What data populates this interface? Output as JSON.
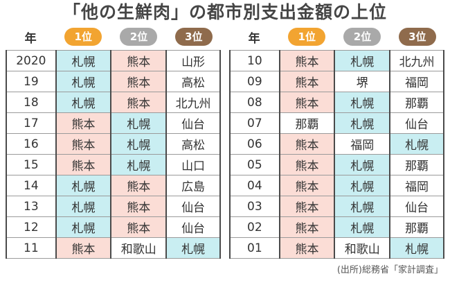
{
  "title": "「他の生鮮肉」の都市別支出金額の上位",
  "source": "(出所)総務省「家計調査」",
  "header": {
    "year_label": "年",
    "ranks": [
      {
        "label": "1位",
        "color": "#F2A431"
      },
      {
        "label": "2位",
        "color": "#A9A9A9"
      },
      {
        "label": "3位",
        "color": "#8F6B4C"
      }
    ]
  },
  "city_highlights": {
    "札幌": "#C9EEF2",
    "熊本": "#FBDDD6"
  },
  "chart_data": {
    "type": "table",
    "title": "「他の生鮮肉」の都市別支出金額の上位",
    "columns": [
      "年",
      "1位",
      "2位",
      "3位"
    ],
    "tables": [
      {
        "rows": [
          [
            "2020",
            "札幌",
            "熊本",
            "山形"
          ],
          [
            "19",
            "札幌",
            "熊本",
            "高松"
          ],
          [
            "18",
            "札幌",
            "熊本",
            "北九州"
          ],
          [
            "17",
            "熊本",
            "札幌",
            "仙台"
          ],
          [
            "16",
            "熊本",
            "札幌",
            "高松"
          ],
          [
            "15",
            "熊本",
            "札幌",
            "山口"
          ],
          [
            "14",
            "札幌",
            "熊本",
            "広島"
          ],
          [
            "13",
            "札幌",
            "熊本",
            "仙台"
          ],
          [
            "12",
            "札幌",
            "熊本",
            "仙台"
          ],
          [
            "11",
            "熊本",
            "和歌山",
            "札幌"
          ]
        ]
      },
      {
        "rows": [
          [
            "10",
            "熊本",
            "札幌",
            "北九州"
          ],
          [
            "09",
            "熊本",
            "堺",
            "福岡"
          ],
          [
            "08",
            "熊本",
            "札幌",
            "那覇"
          ],
          [
            "07",
            "那覇",
            "札幌",
            "仙台"
          ],
          [
            "06",
            "熊本",
            "福岡",
            "札幌"
          ],
          [
            "05",
            "熊本",
            "札幌",
            "那覇"
          ],
          [
            "04",
            "熊本",
            "札幌",
            "福岡"
          ],
          [
            "03",
            "熊本",
            "札幌",
            "仙台"
          ],
          [
            "02",
            "熊本",
            "札幌",
            "那覇"
          ],
          [
            "01",
            "熊本",
            "和歌山",
            "札幌"
          ]
        ]
      }
    ]
  }
}
